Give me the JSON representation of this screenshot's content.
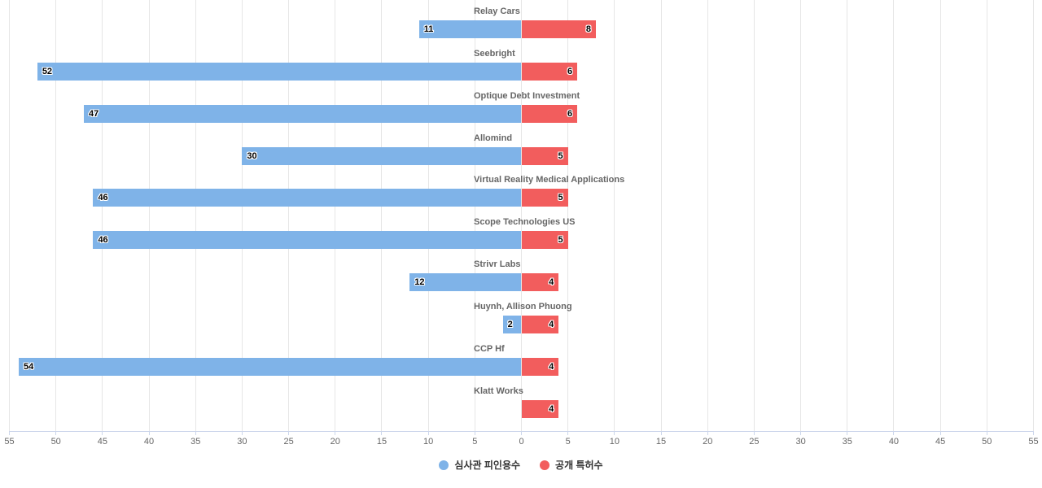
{
  "chart_data": {
    "type": "bar",
    "orientation": "horizontal-diverging",
    "title": "",
    "categories": [
      "Relay Cars",
      "Seebright",
      "Optique Debt Investment",
      "Allomind",
      "Virtual Reality Medical Applications",
      "Scope Technologies US",
      "Strivr Labs",
      "Huynh, Allison Phuong",
      "CCP Hf",
      "Klatt Works"
    ],
    "series": [
      {
        "name": "심사관 피인용수",
        "color": "#7fb3e8",
        "direction": "left",
        "values": [
          11,
          52,
          47,
          30,
          46,
          46,
          12,
          2,
          54,
          0
        ]
      },
      {
        "name": "공개 특허수",
        "color": "#f25d5d",
        "direction": "right",
        "values": [
          8,
          6,
          6,
          5,
          5,
          5,
          4,
          4,
          4,
          4
        ]
      }
    ],
    "x_axis": {
      "min": -55,
      "max": 55,
      "tick_interval": 5,
      "tick_labels_absolute": true,
      "tick_labels_left": [
        "55",
        "50",
        "45",
        "40",
        "35",
        "30",
        "25",
        "20",
        "15",
        "10",
        "5"
      ],
      "center_label": "0",
      "tick_labels_right": [
        "5",
        "10",
        "15",
        "20",
        "25",
        "30",
        "35",
        "40",
        "45",
        "50",
        "55"
      ]
    },
    "grid": true,
    "legend_position": "bottom-center"
  },
  "colors": {
    "background": "#ffffff",
    "gridline": "#e6e6e6",
    "axis_line": "#ccd6eb",
    "tick_label": "#666666",
    "category_label": "#666666",
    "value_label": "#000000",
    "legend_text": "#333333"
  }
}
